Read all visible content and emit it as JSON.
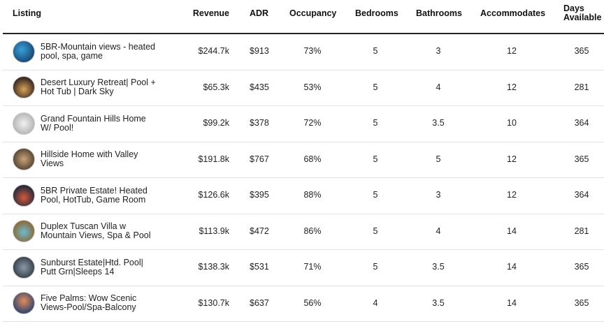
{
  "table": {
    "header": [
      "Listing",
      "Revenue",
      "ADR",
      "Occupancy",
      "Bedrooms",
      "Bathrooms",
      "Accommodates",
      "Days Available"
    ],
    "rows": [
      [
        "5BR-Mountain views - heated pool, spa, game",
        "$244.7k",
        "$913",
        "73%",
        "5",
        "3",
        "12",
        "365"
      ],
      [
        "Desert Luxury Retreat| Pool + Hot Tub | Dark Sky",
        "$65.3k",
        "$435",
        "53%",
        "5",
        "4",
        "12",
        "281"
      ],
      [
        "Grand Fountain Hills Home W/ Pool!",
        "$99.2k",
        "$378",
        "72%",
        "5",
        "3.5",
        "10",
        "364"
      ],
      [
        "Hillside Home with Valley Views",
        "$191.8k",
        "$767",
        "68%",
        "5",
        "5",
        "12",
        "365"
      ],
      [
        "5BR Private Estate! Heated Pool, HotTub, Game Room",
        "$126.6k",
        "$395",
        "88%",
        "5",
        "3",
        "12",
        "364"
      ],
      [
        "Duplex Tuscan Villa w Mountain Views, Spa & Pool",
        "$113.9k",
        "$472",
        "86%",
        "5",
        "4",
        "14",
        "281"
      ],
      [
        "Sunburst Estate|Htd. Pool| Putt Grn|Sleeps 14",
        "$138.3k",
        "$531",
        "71%",
        "5",
        "3.5",
        "14",
        "365"
      ],
      [
        "Five Palms: Wow Scenic Views-Pool/Spa-Balcony",
        "$130.7k",
        "$637",
        "56%",
        "4",
        "3.5",
        "14",
        "365"
      ]
    ]
  }
}
